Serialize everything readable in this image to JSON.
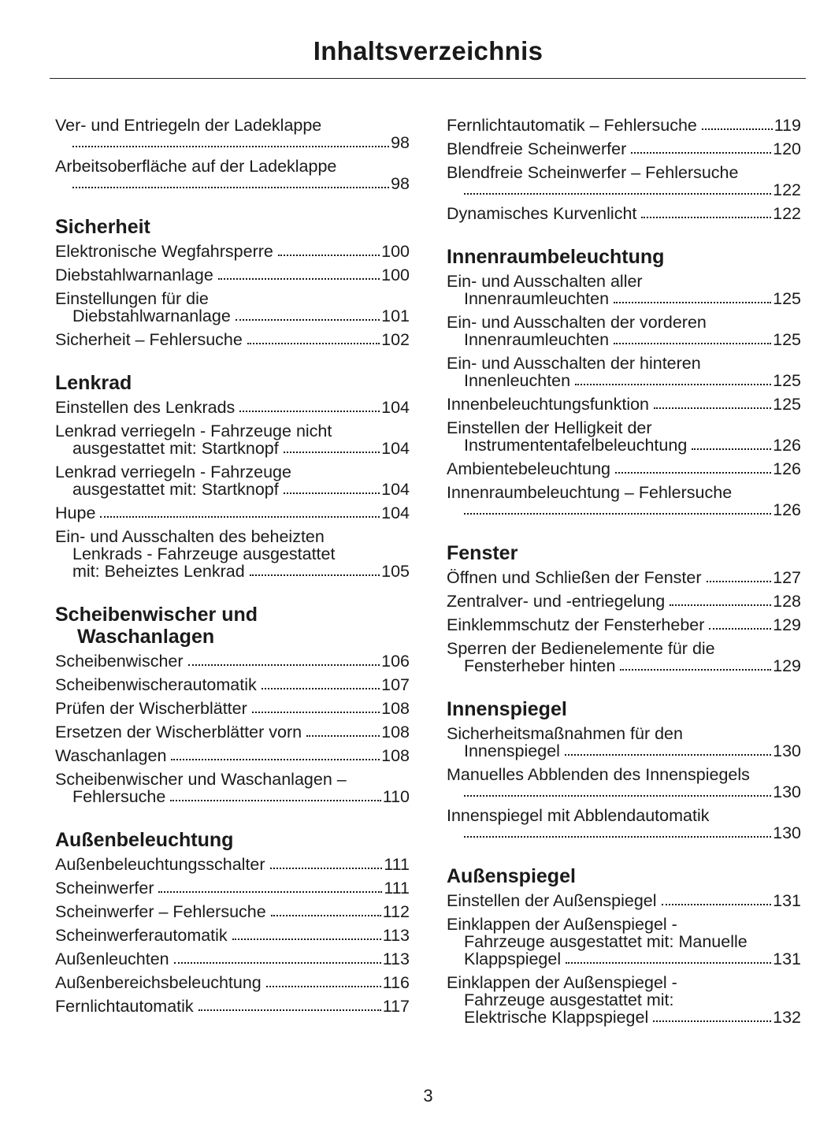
{
  "title": "Inhaltsverzeichnis",
  "page_number": "3",
  "columns": [
    [
      {
        "type": "entry",
        "lines": [
          "Ver- und Entriegeln der Ladeklappe",
          ""
        ],
        "page": "98"
      },
      {
        "type": "entry",
        "lines": [
          "Arbeitsoberfläche auf der Ladeklappe",
          ""
        ],
        "page": "98"
      },
      {
        "type": "heading",
        "lines": [
          "Sicherheit"
        ]
      },
      {
        "type": "entry",
        "lines": [
          "Elektronische Wegfahrsperre"
        ],
        "page": "100"
      },
      {
        "type": "entry",
        "lines": [
          "Diebstahlwarnanlage"
        ],
        "page": "100"
      },
      {
        "type": "entry",
        "lines": [
          "Einstellungen für die",
          "Diebstahlwarnanlage"
        ],
        "page": "101"
      },
      {
        "type": "entry",
        "lines": [
          "Sicherheit – Fehlersuche"
        ],
        "page": "102"
      },
      {
        "type": "heading",
        "lines": [
          "Lenkrad"
        ]
      },
      {
        "type": "entry",
        "lines": [
          "Einstellen des Lenkrads"
        ],
        "page": "104"
      },
      {
        "type": "entry",
        "lines": [
          "Lenkrad verriegeln - Fahrzeuge nicht",
          "ausgestattet mit: Startknopf"
        ],
        "page": "104"
      },
      {
        "type": "entry",
        "lines": [
          "Lenkrad verriegeln - Fahrzeuge",
          "ausgestattet mit: Startknopf"
        ],
        "page": "104"
      },
      {
        "type": "entry",
        "lines": [
          "Hupe"
        ],
        "page": "104"
      },
      {
        "type": "entry",
        "lines": [
          "Ein- und Ausschalten des beheizten",
          "Lenkrads - Fahrzeuge ausgestattet",
          "mit: Beheiztes Lenkrad"
        ],
        "page": "105"
      },
      {
        "type": "heading",
        "lines": [
          "Scheibenwischer und",
          "Waschanlagen"
        ]
      },
      {
        "type": "entry",
        "lines": [
          "Scheibenwischer"
        ],
        "page": "106"
      },
      {
        "type": "entry",
        "lines": [
          "Scheibenwischerautomatik"
        ],
        "page": "107"
      },
      {
        "type": "entry",
        "lines": [
          "Prüfen der Wischerblätter"
        ],
        "page": "108"
      },
      {
        "type": "entry",
        "lines": [
          "Ersetzen der Wischerblätter vorn"
        ],
        "page": "108"
      },
      {
        "type": "entry",
        "lines": [
          "Waschanlagen"
        ],
        "page": "108"
      },
      {
        "type": "entry",
        "lines": [
          "Scheibenwischer und Waschanlagen –",
          "Fehlersuche"
        ],
        "page": "110"
      },
      {
        "type": "heading",
        "lines": [
          "Außenbeleuchtung"
        ]
      },
      {
        "type": "entry",
        "lines": [
          "Außenbeleuchtungsschalter"
        ],
        "page": "111"
      },
      {
        "type": "entry",
        "lines": [
          "Scheinwerfer"
        ],
        "page": "111"
      },
      {
        "type": "entry",
        "lines": [
          "Scheinwerfer – Fehlersuche"
        ],
        "page": "112"
      },
      {
        "type": "entry",
        "lines": [
          "Scheinwerferautomatik"
        ],
        "page": "113"
      },
      {
        "type": "entry",
        "lines": [
          "Außenleuchten"
        ],
        "page": "113"
      },
      {
        "type": "entry",
        "lines": [
          "Außenbereichsbeleuchtung"
        ],
        "page": "116"
      },
      {
        "type": "entry",
        "lines": [
          "Fernlichtautomatik"
        ],
        "page": "117"
      }
    ],
    [
      {
        "type": "entry",
        "lines": [
          "Fernlichtautomatik – Fehlersuche"
        ],
        "page": "119"
      },
      {
        "type": "entry",
        "lines": [
          "Blendfreie Scheinwerfer"
        ],
        "page": "120"
      },
      {
        "type": "entry",
        "lines": [
          "Blendfreie Scheinwerfer – Fehlersuche",
          ""
        ],
        "page": "122"
      },
      {
        "type": "entry",
        "lines": [
          "Dynamisches Kurvenlicht"
        ],
        "page": "122"
      },
      {
        "type": "heading",
        "lines": [
          "Innenraumbeleuchtung"
        ]
      },
      {
        "type": "entry",
        "lines": [
          "Ein- und Ausschalten aller",
          "Innenraumleuchten"
        ],
        "page": "125"
      },
      {
        "type": "entry",
        "lines": [
          "Ein- und Ausschalten der vorderen",
          "Innenraumleuchten"
        ],
        "page": "125"
      },
      {
        "type": "entry",
        "lines": [
          "Ein- und Ausschalten der hinteren",
          "Innenleuchten"
        ],
        "page": "125"
      },
      {
        "type": "entry",
        "lines": [
          "Innenbeleuchtungsfunktion"
        ],
        "page": "125"
      },
      {
        "type": "entry",
        "lines": [
          "Einstellen der Helligkeit der",
          "Instrumententafelbeleuchtung"
        ],
        "page": "126"
      },
      {
        "type": "entry",
        "lines": [
          "Ambientebeleuchtung"
        ],
        "page": "126"
      },
      {
        "type": "entry",
        "lines": [
          "Innenraumbeleuchtung – Fehlersuche",
          ""
        ],
        "page": "126"
      },
      {
        "type": "heading",
        "lines": [
          "Fenster"
        ]
      },
      {
        "type": "entry",
        "lines": [
          "Öffnen und Schließen der Fenster"
        ],
        "page": "127"
      },
      {
        "type": "entry",
        "lines": [
          "Zentralver- und -entriegelung"
        ],
        "page": "128"
      },
      {
        "type": "entry",
        "lines": [
          "Einklemmschutz der Fensterheber"
        ],
        "page": "129"
      },
      {
        "type": "entry",
        "lines": [
          "Sperren der Bedienelemente für die",
          "Fensterheber hinten"
        ],
        "page": "129"
      },
      {
        "type": "heading",
        "lines": [
          "Innenspiegel"
        ]
      },
      {
        "type": "entry",
        "lines": [
          "Sicherheitsmaßnahmen für den",
          "Innenspiegel"
        ],
        "page": "130"
      },
      {
        "type": "entry",
        "lines": [
          "Manuelles Abblenden des Innenspiegels",
          ""
        ],
        "page": "130"
      },
      {
        "type": "entry",
        "lines": [
          "Innenspiegel mit Abblendautomatik",
          ""
        ],
        "page": "130"
      },
      {
        "type": "heading",
        "lines": [
          "Außenspiegel"
        ]
      },
      {
        "type": "entry",
        "lines": [
          "Einstellen der Außenspiegel"
        ],
        "page": "131"
      },
      {
        "type": "entry",
        "lines": [
          "Einklappen der Außenspiegel -",
          "Fahrzeuge ausgestattet mit: Manuelle",
          "Klappspiegel"
        ],
        "page": "131"
      },
      {
        "type": "entry",
        "lines": [
          "Einklappen der Außenspiegel -",
          "Fahrzeuge ausgestattet mit:",
          "Elektrische Klappspiegel"
        ],
        "page": "132"
      }
    ]
  ]
}
